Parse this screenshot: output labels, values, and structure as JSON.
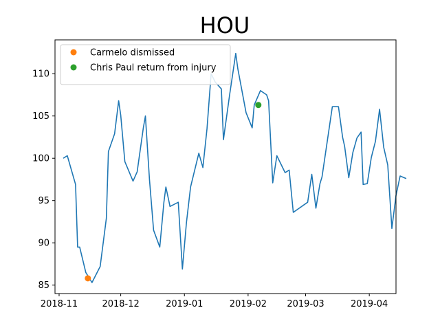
{
  "chart_data": {
    "type": "line",
    "title": "HOU",
    "xlabel": "",
    "ylabel": "",
    "x_axis": {
      "min": "2018-10-30",
      "max": "2019-04-14",
      "ticks": [
        "2018-11",
        "2018-12",
        "2019-01",
        "2019-02",
        "2019-03",
        "2019-04"
      ]
    },
    "y_axis": {
      "min": 84,
      "max": 114,
      "ticks": [
        85,
        90,
        95,
        100,
        105,
        110
      ]
    },
    "grid": false,
    "legend_placement": "upper-left",
    "series": [
      {
        "name": "",
        "color": "#1f77b4",
        "kind": "line",
        "points": [
          [
            "2018-11-03",
            100.0
          ],
          [
            "2018-11-05",
            100.3
          ],
          [
            "2018-11-09",
            96.9
          ],
          [
            "2018-11-10",
            89.5
          ],
          [
            "2018-11-11",
            89.5
          ],
          [
            "2018-11-14",
            86.5
          ],
          [
            "2018-11-17",
            85.3
          ],
          [
            "2018-11-21",
            87.2
          ],
          [
            "2018-11-24",
            92.9
          ],
          [
            "2018-11-25",
            100.8
          ],
          [
            "2018-11-28",
            102.9
          ],
          [
            "2018-11-30",
            106.8
          ],
          [
            "2018-12-01",
            105.1
          ],
          [
            "2018-12-03",
            99.6
          ],
          [
            "2018-12-07",
            97.3
          ],
          [
            "2018-12-09",
            98.4
          ],
          [
            "2018-12-12",
            103.6
          ],
          [
            "2018-12-13",
            105.0
          ],
          [
            "2018-12-15",
            97.5
          ],
          [
            "2018-12-17",
            91.5
          ],
          [
            "2018-12-20",
            89.5
          ],
          [
            "2018-12-22",
            94.8
          ],
          [
            "2018-12-23",
            96.6
          ],
          [
            "2018-12-25",
            94.3
          ],
          [
            "2018-12-29",
            94.8
          ],
          [
            "2018-12-31",
            86.9
          ],
          [
            "2019-01-02",
            92.4
          ],
          [
            "2019-01-04",
            96.6
          ],
          [
            "2019-01-08",
            100.6
          ],
          [
            "2019-01-10",
            98.9
          ],
          [
            "2019-01-12",
            103.5
          ],
          [
            "2019-01-14",
            110.0
          ],
          [
            "2019-01-16",
            109.0
          ],
          [
            "2019-01-19",
            108.2
          ],
          [
            "2019-01-20",
            102.2
          ],
          [
            "2019-01-23",
            107.5
          ],
          [
            "2019-01-26",
            112.4
          ],
          [
            "2019-01-27",
            110.6
          ],
          [
            "2019-01-31",
            105.4
          ],
          [
            "2019-02-03",
            103.6
          ],
          [
            "2019-02-04",
            106.3
          ],
          [
            "2019-02-07",
            108.0
          ],
          [
            "2019-02-10",
            107.5
          ],
          [
            "2019-02-11",
            106.8
          ],
          [
            "2019-02-13",
            97.1
          ],
          [
            "2019-02-15",
            100.3
          ],
          [
            "2019-02-19",
            98.3
          ],
          [
            "2019-02-21",
            98.6
          ],
          [
            "2019-02-23",
            93.6
          ],
          [
            "2019-03-02",
            94.8
          ],
          [
            "2019-03-04",
            98.1
          ],
          [
            "2019-03-06",
            94.1
          ],
          [
            "2019-03-08",
            97.0
          ],
          [
            "2019-03-09",
            97.8
          ],
          [
            "2019-03-14",
            106.1
          ],
          [
            "2019-03-17",
            106.1
          ],
          [
            "2019-03-19",
            102.5
          ],
          [
            "2019-03-20",
            101.4
          ],
          [
            "2019-03-22",
            97.7
          ],
          [
            "2019-03-24",
            100.7
          ],
          [
            "2019-03-26",
            102.4
          ],
          [
            "2019-03-28",
            103.1
          ],
          [
            "2019-03-29",
            96.9
          ],
          [
            "2019-03-31",
            97.0
          ],
          [
            "2019-04-02",
            100.1
          ],
          [
            "2019-04-04",
            102.0
          ],
          [
            "2019-04-06",
            105.8
          ],
          [
            "2019-04-08",
            101.3
          ],
          [
            "2019-04-10",
            99.2
          ],
          [
            "2019-04-12",
            91.7
          ],
          [
            "2019-04-14",
            95.6
          ],
          [
            "2019-04-16",
            97.9
          ],
          [
            "2019-04-19",
            97.6
          ]
        ]
      },
      {
        "name": "Carmelo dismissed",
        "color": "#ff7f0e",
        "kind": "marker",
        "points": [
          [
            "2018-11-15",
            85.8
          ]
        ]
      },
      {
        "name": "Chris Paul return from injury",
        "color": "#2ca02c",
        "kind": "marker",
        "points": [
          [
            "2019-02-06",
            106.3
          ]
        ]
      }
    ]
  }
}
